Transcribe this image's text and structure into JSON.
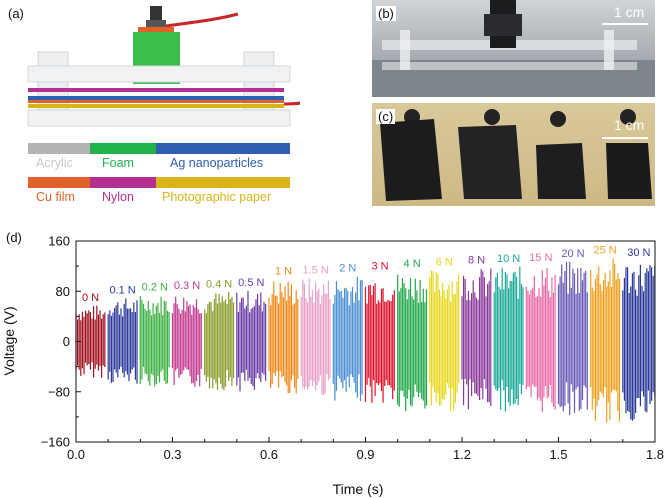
{
  "panels": {
    "a": "(a)",
    "b": "(b)",
    "c": "(c)",
    "d": "(d)"
  },
  "scale_bars": {
    "b": "1 cm",
    "c": "1 cm"
  },
  "legend": [
    {
      "label": "Acrylic",
      "color": "#b4b4b4",
      "text_color": "#c8c8c8"
    },
    {
      "label": "Foam",
      "color": "#22b24c",
      "text_color": "#ffffff"
    },
    {
      "label": "Ag nanoparticles",
      "color": "#2e5fb0",
      "text_color": "#2e5fb0"
    },
    {
      "label": "Cu film",
      "color": "#e0622a",
      "text_color": "#e0622a"
    },
    {
      "label": "Nylon",
      "color": "#b4308f",
      "text_color": "#b4308f"
    },
    {
      "label": "Photographic paper",
      "color": "#d9b51c",
      "text_color": "#d9b51c"
    }
  ],
  "chart_data": {
    "type": "line",
    "xlabel": "Time (s)",
    "ylabel": "Voltage (V)",
    "xlim": [
      0.0,
      1.8
    ],
    "ylim": [
      -160,
      160
    ],
    "xticks": [
      "0.0",
      "0.3",
      "0.6",
      "0.9",
      "1.2",
      "1.5",
      "1.8"
    ],
    "yticks": [
      "160",
      "80",
      "0",
      "−80",
      "−160"
    ],
    "series": [
      {
        "name": "0 N",
        "color": "#a0101e",
        "t_start": 0.0,
        "t_end": 0.09,
        "v_max": 58,
        "v_min": -58
      },
      {
        "name": "0.1 N",
        "color": "#2d3a9c",
        "t_start": 0.1,
        "t_end": 0.19,
        "v_max": 70,
        "v_min": -68
      },
      {
        "name": "0.2 N",
        "color": "#3cb043",
        "t_start": 0.2,
        "t_end": 0.29,
        "v_max": 75,
        "v_min": -72
      },
      {
        "name": "0.3 N",
        "color": "#c2398e",
        "t_start": 0.3,
        "t_end": 0.39,
        "v_max": 77,
        "v_min": -75
      },
      {
        "name": "0.4 N",
        "color": "#8a9a2a",
        "t_start": 0.4,
        "t_end": 0.49,
        "v_max": 80,
        "v_min": -78
      },
      {
        "name": "0.5 N",
        "color": "#6a3ca8",
        "t_start": 0.5,
        "t_end": 0.59,
        "v_max": 82,
        "v_min": -80
      },
      {
        "name": "1 N",
        "color": "#f08a1c",
        "t_start": 0.6,
        "t_end": 0.69,
        "v_max": 100,
        "v_min": -84
      },
      {
        "name": "1.5 N",
        "color": "#e8a2c8",
        "t_start": 0.7,
        "t_end": 0.79,
        "v_max": 102,
        "v_min": -88
      },
      {
        "name": "2 N",
        "color": "#4a8fd4",
        "t_start": 0.8,
        "t_end": 0.89,
        "v_max": 105,
        "v_min": -95
      },
      {
        "name": "3 N",
        "color": "#e0102a",
        "t_start": 0.9,
        "t_end": 0.99,
        "v_max": 108,
        "v_min": -100
      },
      {
        "name": "4 N",
        "color": "#22a84a",
        "t_start": 1.0,
        "t_end": 1.09,
        "v_max": 112,
        "v_min": -118
      },
      {
        "name": "6 N",
        "color": "#e8d81c",
        "t_start": 1.1,
        "t_end": 1.19,
        "v_max": 115,
        "v_min": -112
      },
      {
        "name": "8 N",
        "color": "#8a3a9a",
        "t_start": 1.2,
        "t_end": 1.29,
        "v_max": 118,
        "v_min": -108
      },
      {
        "name": "10 N",
        "color": "#1aaa9a",
        "t_start": 1.3,
        "t_end": 1.39,
        "v_max": 120,
        "v_min": -112
      },
      {
        "name": "15 N",
        "color": "#ea6aa8",
        "t_start": 1.4,
        "t_end": 1.49,
        "v_max": 122,
        "v_min": -115
      },
      {
        "name": "20 N",
        "color": "#6a5ab8",
        "t_start": 1.5,
        "t_end": 1.59,
        "v_max": 128,
        "v_min": -118
      },
      {
        "name": "25 N",
        "color": "#f0a020",
        "t_start": 1.6,
        "t_end": 1.69,
        "v_max": 134,
        "v_min": -132
      },
      {
        "name": "30 N",
        "color": "#2a3a9a",
        "t_start": 1.7,
        "t_end": 1.8,
        "v_max": 130,
        "v_min": -128
      }
    ]
  }
}
